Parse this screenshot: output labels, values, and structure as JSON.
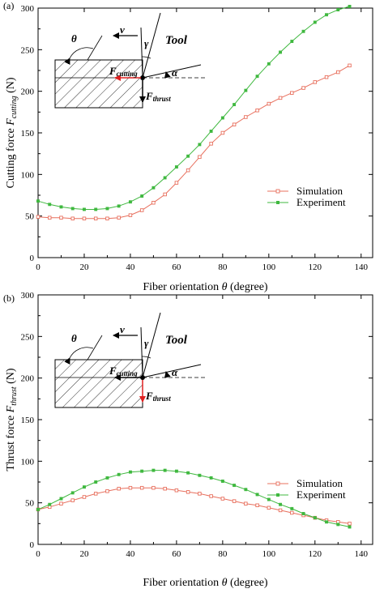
{
  "colors": {
    "simulation": "#e8705e",
    "experiment": "#3fb83f",
    "force_arrow": "#e02020"
  },
  "chart_data": [
    {
      "panel_label": "(a)",
      "type": "line",
      "xlabel_text": "Fiber orientation ",
      "xlabel_sym": "θ",
      "xlabel_unit": " (degree)",
      "ylabel_text": "Cutting force ",
      "ylabel_sym": "F",
      "ylabel_sub": "cutting",
      "ylabel_unit": " (N)",
      "xlim": [
        0,
        145
      ],
      "ylim": [
        0,
        300
      ],
      "xticks": [
        0,
        20,
        40,
        60,
        80,
        100,
        120,
        140
      ],
      "yticks": [
        0,
        50,
        100,
        150,
        200,
        250,
        300
      ],
      "legend_position": "center-right",
      "series": [
        {
          "name": "Simulation",
          "marker": "open-square",
          "x": [
            0,
            5,
            10,
            15,
            20,
            25,
            30,
            35,
            40,
            45,
            50,
            55,
            60,
            65,
            70,
            75,
            80,
            85,
            90,
            95,
            100,
            105,
            110,
            115,
            120,
            125,
            130,
            135
          ],
          "y": [
            49,
            48,
            48,
            47,
            47,
            47,
            47,
            48,
            51,
            57,
            66,
            76,
            90,
            105,
            121,
            137,
            150,
            160,
            169,
            177,
            185,
            192,
            198,
            204,
            211,
            217,
            223,
            231
          ]
        },
        {
          "name": "Experiment",
          "marker": "filled-square",
          "x": [
            0,
            5,
            10,
            15,
            20,
            25,
            30,
            35,
            40,
            45,
            50,
            55,
            60,
            65,
            70,
            75,
            80,
            85,
            90,
            95,
            100,
            105,
            110,
            115,
            120,
            125,
            130,
            135
          ],
          "y": [
            68,
            64,
            61,
            59,
            58,
            58,
            59,
            62,
            67,
            74,
            84,
            96,
            109,
            122,
            136,
            152,
            168,
            184,
            201,
            218,
            233,
            247,
            260,
            272,
            283,
            292,
            298,
            302
          ]
        }
      ],
      "inset": {
        "theta": "θ",
        "v": "v",
        "gamma": "γ",
        "tool": "Tool",
        "alpha": "α",
        "f_cut": "F",
        "f_cut_sub": "cutting",
        "f_thrust": "F",
        "f_thrust_sub": "thrust",
        "highlight": "cutting"
      }
    },
    {
      "panel_label": "(b)",
      "type": "line",
      "xlabel_text": "Fiber orientation ",
      "xlabel_sym": "θ",
      "xlabel_unit": " (degree)",
      "ylabel_text": "Thrust force ",
      "ylabel_sym": "F",
      "ylabel_sub": "thrust",
      "ylabel_unit": " (N)",
      "xlim": [
        0,
        145
      ],
      "ylim": [
        0,
        300
      ],
      "xticks": [
        0,
        20,
        40,
        60,
        80,
        100,
        120,
        140
      ],
      "yticks": [
        0,
        50,
        100,
        150,
        200,
        250,
        300
      ],
      "legend_position": "lower-right",
      "series": [
        {
          "name": "Simulation",
          "marker": "open-square",
          "x": [
            0,
            5,
            10,
            15,
            20,
            25,
            30,
            35,
            40,
            45,
            50,
            55,
            60,
            65,
            70,
            75,
            80,
            85,
            90,
            95,
            100,
            105,
            110,
            115,
            120,
            125,
            130,
            135
          ],
          "y": [
            42,
            45,
            49,
            53,
            57,
            61,
            64,
            67,
            68,
            68,
            68,
            67,
            65,
            63,
            61,
            58,
            55,
            52,
            49,
            47,
            44,
            41,
            38,
            35,
            32,
            29,
            27,
            25
          ]
        },
        {
          "name": "Experiment",
          "marker": "filled-square",
          "x": [
            0,
            5,
            10,
            15,
            20,
            25,
            30,
            35,
            40,
            45,
            50,
            55,
            60,
            65,
            70,
            75,
            80,
            85,
            90,
            95,
            100,
            105,
            110,
            115,
            120,
            125,
            130,
            135
          ],
          "y": [
            42,
            48,
            55,
            62,
            69,
            75,
            80,
            84,
            87,
            88,
            89,
            89,
            88,
            86,
            83,
            80,
            76,
            71,
            66,
            60,
            54,
            48,
            43,
            37,
            32,
            27,
            24,
            21
          ]
        }
      ],
      "inset": {
        "theta": "θ",
        "v": "v",
        "gamma": "γ",
        "tool": "Tool",
        "alpha": "α",
        "f_cut": "F",
        "f_cut_sub": "cutting",
        "f_thrust": "F",
        "f_thrust_sub": "thrust",
        "highlight": "thrust"
      }
    }
  ]
}
